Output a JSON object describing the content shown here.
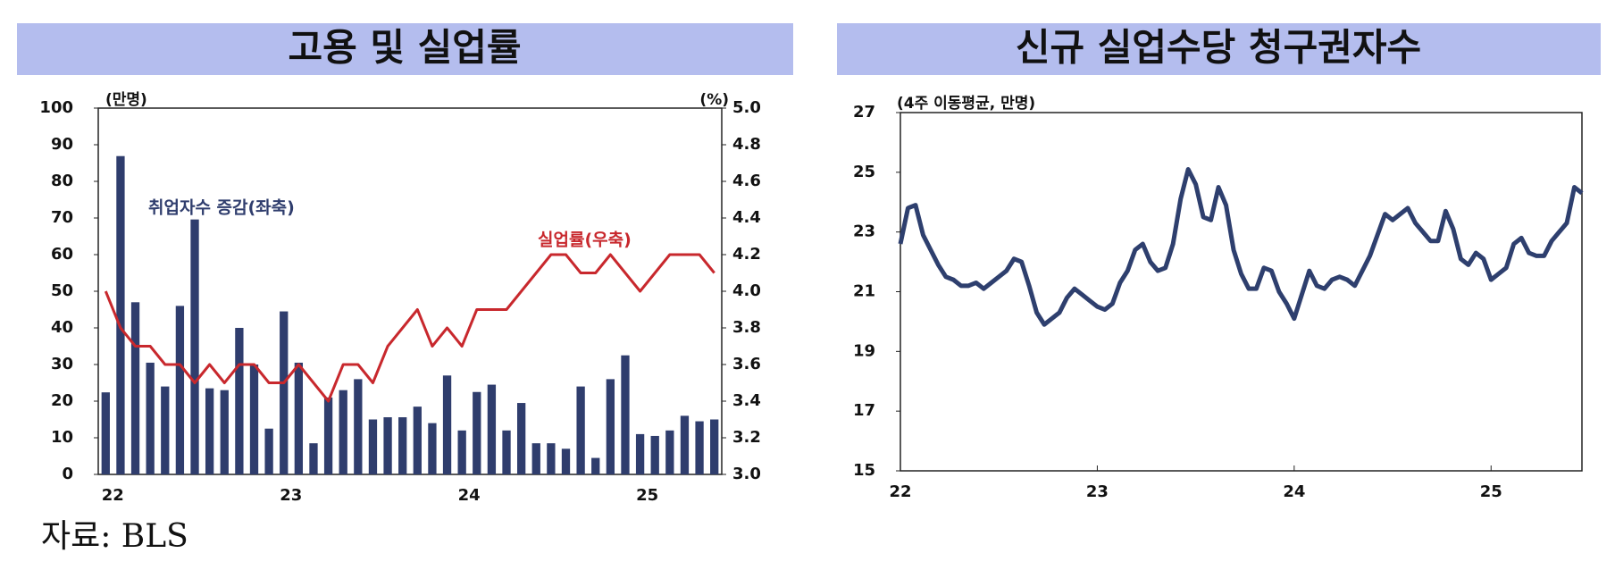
{
  "chart_data": [
    {
      "type": "bar",
      "title": "고용 및 실업률",
      "ylabel": "(만명)",
      "y2label": "(%)",
      "categories": [
        "22",
        null,
        null,
        null,
        null,
        null,
        null,
        null,
        null,
        null,
        null,
        null,
        "23",
        null,
        null,
        null,
        null,
        null,
        null,
        null,
        null,
        null,
        null,
        null,
        "24",
        null,
        null,
        null,
        null,
        null,
        null,
        null,
        null,
        null,
        null,
        null,
        "25",
        null,
        null,
        null,
        null,
        null
      ],
      "series": [
        {
          "name": "취업자수 증감(좌축)",
          "type": "bar",
          "color": "#2f3d6d",
          "values": [
            22.4,
            86.9,
            47,
            30.5,
            24,
            46,
            69.6,
            23.5,
            23,
            40,
            30,
            12.5,
            44.5,
            30.5,
            8.5,
            21,
            23,
            26,
            15,
            15.6,
            15.6,
            18.5,
            14,
            27,
            12,
            22.5,
            24.5,
            12,
            19.5,
            8.5,
            8.5,
            7,
            24,
            4.5,
            26,
            32.5,
            11,
            10.5,
            12,
            16,
            14.5,
            15
          ]
        },
        {
          "name": "실업률(우축)",
          "type": "line",
          "axis": "y2",
          "color": "#c8282d",
          "values": [
            4.0,
            3.8,
            3.7,
            3.7,
            3.6,
            3.6,
            3.5,
            3.6,
            3.5,
            3.6,
            3.6,
            3.5,
            3.5,
            3.6,
            3.5,
            3.4,
            3.6,
            3.6,
            3.5,
            3.7,
            3.8,
            3.9,
            3.7,
            3.8,
            3.7,
            3.9,
            3.9,
            3.9,
            4.0,
            4.1,
            4.2,
            4.2,
            4.1,
            4.1,
            4.2,
            4.1,
            4.0,
            4.1,
            4.2,
            4.2,
            4.2,
            4.1
          ]
        }
      ],
      "ylim": [
        0,
        100
      ],
      "yticks": [
        0,
        10,
        20,
        30,
        40,
        50,
        60,
        70,
        80,
        90,
        100
      ],
      "y2lim": [
        3,
        5
      ],
      "y2ticks": [
        {
          "value": 3,
          "label": "3.0"
        },
        3.2,
        3.4,
        3.6,
        3.8,
        {
          "value": 4,
          "label": "4.0"
        },
        4.2,
        4.4,
        4.6,
        4.8,
        {
          "value": 5,
          "label": "5.0"
        }
      ]
    },
    {
      "type": "line",
      "title": "신규 실업수당 청구권자수",
      "ylabel": "(4주 이동평균, 만명)",
      "categories": [
        "22",
        null,
        null,
        null,
        null,
        null,
        null,
        null,
        null,
        null,
        null,
        null,
        null,
        null,
        null,
        null,
        null,
        null,
        null,
        null,
        null,
        null,
        null,
        null,
        null,
        null,
        "23",
        null,
        null,
        null,
        null,
        null,
        null,
        null,
        null,
        null,
        null,
        null,
        null,
        null,
        null,
        null,
        null,
        null,
        null,
        null,
        null,
        null,
        null,
        null,
        null,
        null,
        "24",
        null,
        null,
        null,
        null,
        null,
        null,
        null,
        null,
        null,
        null,
        null,
        null,
        null,
        null,
        null,
        null,
        null,
        null,
        null,
        null,
        null,
        null,
        null,
        null,
        null,
        "25",
        null,
        null,
        null,
        null,
        null,
        null,
        null,
        null,
        null,
        null,
        null,
        null
      ],
      "series": [
        {
          "name": null,
          "color": "#2e3f6e",
          "values": [
            22.6,
            23.8,
            23.9,
            22.9,
            22.4,
            21.9,
            21.5,
            21.4,
            21.2,
            21.2,
            21.3,
            21.1,
            21.3,
            21.5,
            21.7,
            22.1,
            22.0,
            21.2,
            20.3,
            19.9,
            20.1,
            20.3,
            20.8,
            21.1,
            20.9,
            20.7,
            20.5,
            20.4,
            20.6,
            21.3,
            21.7,
            22.4,
            22.6,
            22.0,
            21.7,
            21.8,
            22.6,
            24.1,
            25.1,
            24.6,
            23.5,
            23.4,
            24.5,
            23.9,
            22.4,
            21.6,
            21.1,
            21.1,
            21.8,
            21.7,
            21.0,
            20.6,
            20.1,
            20.9,
            21.7,
            21.2,
            21.1,
            21.4,
            21.5,
            21.4,
            21.2,
            21.7,
            22.2,
            22.9,
            23.6,
            23.4,
            23.6,
            23.8,
            23.3,
            23.0,
            22.7,
            22.7,
            23.7,
            23.1,
            22.1,
            21.9,
            22.3,
            22.1,
            21.4,
            21.6,
            21.8,
            22.6,
            22.8,
            22.3,
            22.2,
            22.2,
            22.7,
            23.0,
            23.3,
            24.5,
            24.3
          ]
        }
      ],
      "ylim": [
        15,
        27
      ],
      "yticks": [
        15,
        17,
        19,
        21,
        23,
        25,
        27
      ]
    }
  ],
  "source": "자료: BLS"
}
